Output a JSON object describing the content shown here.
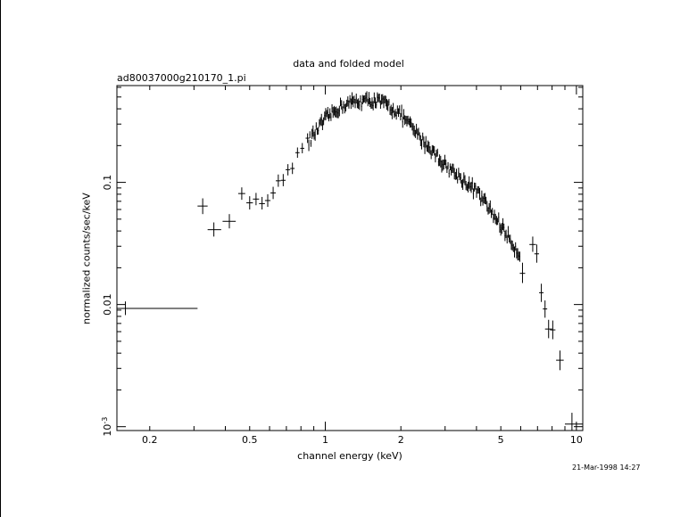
{
  "page": {
    "title": "data and folded model",
    "filename": "ad80037000g210170_1.pi",
    "timestamp": "21-Mar-1998 14:27"
  },
  "chart_data": {
    "type": "scatter",
    "title": "data and folded model",
    "subtitle": "ad80037000g210170_1.pi",
    "xlabel": "channel energy (keV)",
    "ylabel": "normalized counts/sec/keV",
    "xscale": "log",
    "yscale": "log",
    "xlim": [
      0.148,
      10.6
    ],
    "ylim": [
      0.00093,
      0.62
    ],
    "x_ticks": [
      {
        "v": 0.2,
        "t": "0.2"
      },
      {
        "v": 0.5,
        "t": "0.5"
      },
      {
        "v": 1,
        "t": "1"
      },
      {
        "v": 2,
        "t": "2"
      },
      {
        "v": 5,
        "t": "5"
      },
      {
        "v": 10,
        "t": "10"
      }
    ],
    "y_ticks": [
      {
        "v": 0.001,
        "t": "10",
        "sup": "-3"
      },
      {
        "v": 0.01,
        "t": "0.01",
        "sup": ""
      },
      {
        "v": 0.1,
        "t": "0.1",
        "sup": ""
      }
    ],
    "grid": false,
    "legend": "none",
    "series": [
      {
        "error_bars": true,
        "points": [
          {
            "x": 0.16,
            "xlo": 0.148,
            "xhi": 0.31,
            "y": 0.0093,
            "ylo": 0.0082,
            "yhi": 0.0106
          },
          {
            "x": 0.325,
            "xlo": 0.31,
            "xhi": 0.34,
            "y": 0.064,
            "ylo": 0.055,
            "yhi": 0.074
          },
          {
            "x": 0.36,
            "xlo": 0.34,
            "xhi": 0.385,
            "y": 0.041,
            "ylo": 0.036,
            "yhi": 0.047
          },
          {
            "x": 0.415,
            "xlo": 0.39,
            "xhi": 0.44,
            "y": 0.048,
            "ylo": 0.042,
            "yhi": 0.055
          },
          {
            "x": 0.465,
            "xlo": 0.45,
            "xhi": 0.48,
            "y": 0.081,
            "ylo": 0.072,
            "yhi": 0.091
          },
          {
            "x": 0.5,
            "xlo": 0.485,
            "xhi": 0.515,
            "y": 0.068,
            "ylo": 0.06,
            "yhi": 0.077
          },
          {
            "x": 0.53,
            "xlo": 0.515,
            "xhi": 0.545,
            "y": 0.073,
            "ylo": 0.065,
            "yhi": 0.082
          },
          {
            "x": 0.56,
            "xlo": 0.545,
            "xhi": 0.575,
            "y": 0.067,
            "ylo": 0.06,
            "yhi": 0.076
          },
          {
            "x": 0.59,
            "xlo": 0.575,
            "xhi": 0.605,
            "y": 0.071,
            "ylo": 0.063,
            "yhi": 0.08
          },
          {
            "x": 0.62,
            "xlo": 0.605,
            "xhi": 0.635,
            "y": 0.082,
            "ylo": 0.073,
            "yhi": 0.092
          },
          {
            "x": 0.65,
            "xlo": 0.635,
            "xhi": 0.665,
            "y": 0.103,
            "ylo": 0.092,
            "yhi": 0.116
          },
          {
            "x": 0.68,
            "xlo": 0.665,
            "xhi": 0.695,
            "y": 0.104,
            "ylo": 0.093,
            "yhi": 0.117
          },
          {
            "x": 0.71,
            "xlo": 0.695,
            "xhi": 0.725,
            "y": 0.127,
            "ylo": 0.114,
            "yhi": 0.141
          },
          {
            "x": 0.74,
            "xlo": 0.725,
            "xhi": 0.755,
            "y": 0.13,
            "ylo": 0.117,
            "yhi": 0.145
          },
          {
            "x": 0.775,
            "xlo": 0.76,
            "xhi": 0.79,
            "y": 0.175,
            "ylo": 0.159,
            "yhi": 0.193
          },
          {
            "x": 0.81,
            "xlo": 0.795,
            "xhi": 0.825,
            "y": 0.19,
            "ylo": 0.173,
            "yhi": 0.21
          },
          {
            "x": 0.85,
            "xlo": 0.835,
            "xhi": 0.865,
            "y": 0.23,
            "ylo": 0.21,
            "yhi": 0.252
          },
          {
            "x": 6.1,
            "xlo": 5.95,
            "xhi": 6.25,
            "y": 0.018,
            "ylo": 0.015,
            "yhi": 0.022
          },
          {
            "x": 6.7,
            "xlo": 6.5,
            "xhi": 6.9,
            "y": 0.031,
            "ylo": 0.027,
            "yhi": 0.036
          },
          {
            "x": 6.95,
            "xlo": 6.8,
            "xhi": 7.1,
            "y": 0.026,
            "ylo": 0.022,
            "yhi": 0.031
          },
          {
            "x": 7.25,
            "xlo": 7.1,
            "xhi": 7.4,
            "y": 0.0125,
            "ylo": 0.0105,
            "yhi": 0.0148
          },
          {
            "x": 7.5,
            "xlo": 7.35,
            "xhi": 7.65,
            "y": 0.0092,
            "ylo": 0.0078,
            "yhi": 0.0108
          },
          {
            "x": 7.75,
            "xlo": 7.5,
            "xhi": 8.0,
            "y": 0.0063,
            "ylo": 0.0053,
            "yhi": 0.0075
          },
          {
            "x": 8.05,
            "xlo": 7.85,
            "xhi": 8.25,
            "y": 0.0062,
            "ylo": 0.0052,
            "yhi": 0.0074
          },
          {
            "x": 8.6,
            "xlo": 8.3,
            "xhi": 8.9,
            "y": 0.0035,
            "ylo": 0.0029,
            "yhi": 0.0042
          },
          {
            "x": 9.6,
            "xlo": 9.0,
            "xhi": 10.6,
            "y": 0.00105,
            "ylo": 0.00093,
            "yhi": 0.0013
          }
        ],
        "dense_segments": [
          {
            "x_start": 0.86,
            "x_end": 6.0,
            "spacing_log10": 0.0042,
            "knots": [
              [
                0.86,
                0.22
              ],
              [
                1.0,
                0.33
              ],
              [
                1.15,
                0.42
              ],
              [
                1.3,
                0.46
              ],
              [
                1.55,
                0.47
              ],
              [
                1.75,
                0.44
              ],
              [
                2.0,
                0.36
              ],
              [
                2.4,
                0.23
              ],
              [
                3.0,
                0.14
              ],
              [
                4.0,
                0.085
              ],
              [
                5.0,
                0.045
              ],
              [
                5.6,
                0.031
              ],
              [
                6.0,
                0.025
              ]
            ],
            "scatter_frac": 0.1,
            "err_frac": 0.09,
            "half_width_log10": 0.002
          }
        ]
      }
    ]
  }
}
